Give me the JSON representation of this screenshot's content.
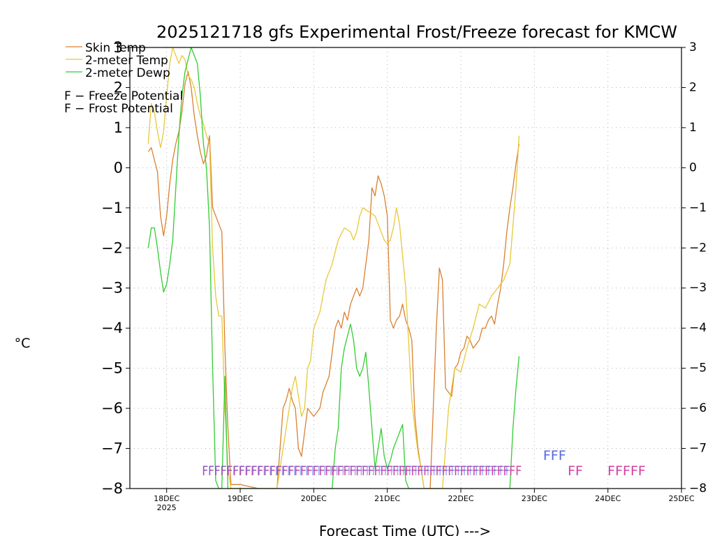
{
  "chart_data": {
    "type": "line",
    "title": "2025121718 gfs Experimental Frost/Freeze forecast for KMCW",
    "xlabel": "Forecast Time (UTC) --->",
    "ylabel": "°C",
    "ylim": [
      -8,
      3
    ],
    "xlim_hours": [
      -6,
      174
    ],
    "yticks": [
      3,
      2,
      1,
      0,
      -1,
      -2,
      -3,
      -4,
      -5,
      -6,
      -7,
      -8
    ],
    "ytick_labels": [
      "3",
      "2",
      "1",
      "0",
      "−1",
      "−2",
      "−3",
      "−4",
      "−5",
      "−6",
      "−7",
      "−8"
    ],
    "xticks": [
      {
        "hour": 6,
        "label": "18DEC",
        "sub": "2025"
      },
      {
        "hour": 30,
        "label": "19DEC",
        "sub": ""
      },
      {
        "hour": 54,
        "label": "20DEC",
        "sub": ""
      },
      {
        "hour": 78,
        "label": "21DEC",
        "sub": ""
      },
      {
        "hour": 102,
        "label": "22DEC",
        "sub": ""
      },
      {
        "hour": 126,
        "label": "23DEC",
        "sub": ""
      },
      {
        "hour": 150,
        "label": "24DEC",
        "sub": ""
      },
      {
        "hour": 174,
        "label": "25DEC",
        "sub": ""
      }
    ],
    "grid": true,
    "legend_position": "top-left",
    "series": [
      {
        "name": "Skin Temp",
        "color": "#d98030",
        "x": [
          0,
          1,
          2,
          3,
          4,
          5,
          6,
          7,
          8,
          9,
          10,
          11,
          12,
          13,
          14,
          15,
          16,
          17,
          18,
          19,
          20,
          21,
          22,
          23,
          24,
          25,
          26,
          27,
          30,
          36,
          42,
          44,
          45,
          46,
          47,
          48,
          49,
          50,
          52,
          54,
          56,
          57,
          58,
          59,
          60,
          61,
          62,
          63,
          64,
          65,
          66,
          67,
          68,
          69,
          70,
          72,
          73,
          74,
          75,
          76,
          77,
          78,
          79,
          80,
          81,
          82,
          83,
          84,
          85,
          86,
          87,
          88,
          90,
          92,
          93,
          94,
          95,
          96,
          97,
          98,
          99,
          100,
          101,
          102,
          103,
          104,
          105,
          106,
          107,
          108,
          109,
          110,
          111,
          112,
          113,
          114,
          115,
          116,
          117,
          118,
          119,
          120,
          121
        ],
        "values": [
          0.4,
          0.5,
          0.2,
          -0.1,
          -1.2,
          -1.7,
          -1.2,
          -0.4,
          0.2,
          0.6,
          0.9,
          1.4,
          2.1,
          2.4,
          2.0,
          1.3,
          0.8,
          0.4,
          0.1,
          0.3,
          0.8,
          -1.0,
          -1.2,
          -1.4,
          -1.6,
          -4.5,
          -6.5,
          -7.9,
          -7.9,
          -8.0,
          -8.0,
          -6.0,
          -5.8,
          -5.5,
          -5.8,
          -6.0,
          -7.0,
          -7.2,
          -6.0,
          -6.2,
          -6.0,
          -5.6,
          -5.4,
          -5.2,
          -4.6,
          -4.0,
          -3.8,
          -4.0,
          -3.6,
          -3.8,
          -3.4,
          -3.2,
          -3.0,
          -3.2,
          -3.0,
          -1.8,
          -0.5,
          -0.7,
          -0.2,
          -0.4,
          -0.7,
          -1.2,
          -3.8,
          -4.0,
          -3.8,
          -3.7,
          -3.4,
          -3.8,
          -4.0,
          -4.3,
          -6.2,
          -7.0,
          -8.0,
          -8.0,
          -6.0,
          -4.0,
          -2.5,
          -2.8,
          -5.5,
          -5.6,
          -5.7,
          -5.0,
          -4.9,
          -4.6,
          -4.5,
          -4.2,
          -4.3,
          -4.5,
          -4.4,
          -4.3,
          -4.0,
          -4.0,
          -3.8,
          -3.7,
          -3.9,
          -3.4,
          -3.0,
          -2.4,
          -1.6,
          -1.0,
          -0.5,
          0.1,
          0.6
        ]
      },
      {
        "name": "2-meter Temp",
        "color": "#e8c838",
        "x": [
          0,
          1,
          2,
          3,
          4,
          5,
          6,
          7,
          8,
          9,
          10,
          11,
          12,
          13,
          14,
          15,
          16,
          17,
          18,
          19,
          20,
          21,
          22,
          23,
          24,
          25,
          26,
          27,
          30,
          42,
          44,
          45,
          46,
          47,
          48,
          49,
          50,
          51,
          52,
          53,
          54,
          56,
          58,
          60,
          62,
          64,
          66,
          67,
          68,
          69,
          70,
          72,
          74,
          75,
          76,
          77,
          78,
          79,
          80,
          81,
          82,
          83,
          84,
          85,
          86,
          87,
          88,
          89,
          90,
          92,
          96,
          98,
          100,
          102,
          104,
          106,
          108,
          110,
          112,
          114,
          116,
          118,
          120,
          121
        ],
        "values": [
          0.6,
          1.6,
          1.4,
          0.9,
          0.5,
          0.9,
          1.8,
          2.6,
          3.0,
          2.8,
          2.6,
          2.8,
          2.7,
          2.3,
          2.2,
          2.0,
          1.6,
          1.3,
          1.1,
          0.8,
          0.6,
          -2.0,
          -3.2,
          -3.7,
          -3.7,
          -6.0,
          -7.5,
          -8.0,
          -8.0,
          -8.0,
          -7.0,
          -6.5,
          -6.0,
          -5.5,
          -5.2,
          -5.7,
          -6.2,
          -6.0,
          -5.0,
          -4.8,
          -4.0,
          -3.6,
          -2.8,
          -2.4,
          -1.8,
          -1.5,
          -1.6,
          -1.8,
          -1.6,
          -1.2,
          -1.0,
          -1.1,
          -1.2,
          -1.4,
          -1.6,
          -1.8,
          -1.9,
          -1.8,
          -1.5,
          -1.0,
          -1.4,
          -2.2,
          -3.0,
          -4.4,
          -5.8,
          -6.5,
          -7.1,
          -7.5,
          -8.0,
          -8.0,
          -8.0,
          -6.0,
          -5.0,
          -5.1,
          -4.5,
          -4.0,
          -3.4,
          -3.5,
          -3.2,
          -3.0,
          -2.8,
          -2.4,
          -0.5,
          0.8
        ]
      },
      {
        "name": "2-meter Dewp",
        "color": "#33cc33",
        "x": [
          0,
          1,
          2,
          3,
          4,
          5,
          6,
          7,
          8,
          9,
          10,
          11,
          12,
          13,
          14,
          15,
          16,
          17,
          18,
          19,
          20,
          21,
          22,
          23,
          24,
          25,
          26,
          28,
          30,
          40,
          60,
          61,
          62,
          63,
          64,
          65,
          66,
          67,
          68,
          69,
          70,
          71,
          72,
          74,
          75,
          76,
          77,
          78,
          79,
          80,
          81,
          82,
          83,
          84,
          85,
          86,
          87,
          100,
          118,
          119,
          120,
          121
        ],
        "values": [
          -2.0,
          -1.5,
          -1.5,
          -2.0,
          -2.6,
          -3.1,
          -2.9,
          -2.4,
          -1.8,
          -0.5,
          0.8,
          1.8,
          2.4,
          2.7,
          3.0,
          2.8,
          2.6,
          1.8,
          0.6,
          0.0,
          -1.5,
          -5.0,
          -7.8,
          -8.0,
          -8.0,
          -5.2,
          -8.0,
          -8.0,
          -8.0,
          -8.0,
          -8.0,
          -7.0,
          -6.5,
          -5.0,
          -4.5,
          -4.2,
          -3.9,
          -4.3,
          -5.0,
          -5.2,
          -5.0,
          -4.6,
          -5.5,
          -7.5,
          -7.0,
          -6.5,
          -7.2,
          -7.5,
          -7.3,
          -7.0,
          -6.8,
          -6.6,
          -6.4,
          -7.8,
          -8.0,
          -8.0,
          -8.0,
          -8.0,
          -8.0,
          -6.5,
          -5.5,
          -4.7
        ]
      }
    ],
    "annotations": {
      "legend_freeze": "F − Freeze Potential",
      "legend_frost": "F − Frost Potential",
      "freeze_color": "#d040a0",
      "frost_color": "#5566dd",
      "freeze_potential_hours": [
        18,
        20,
        22,
        24,
        26,
        28,
        30,
        32,
        34,
        36,
        38,
        40,
        42,
        44,
        46,
        48,
        50,
        52,
        54,
        56,
        58,
        60,
        62,
        64,
        66,
        68,
        70,
        72,
        74,
        76,
        78,
        80,
        82,
        84,
        86,
        88,
        90,
        92,
        94,
        96,
        98,
        100,
        102,
        104,
        106,
        108,
        110,
        112,
        114,
        116,
        118,
        120
      ],
      "frost_potential_hours": [
        18,
        20,
        22,
        24,
        26,
        28,
        30,
        32,
        34,
        36,
        38,
        40,
        42,
        44,
        46,
        48,
        50,
        52,
        54,
        56,
        58,
        60,
        62,
        64,
        66,
        68,
        70,
        72,
        74,
        76,
        78,
        80,
        82,
        84,
        86,
        88,
        90,
        92,
        94,
        96,
        98,
        100,
        102,
        104,
        106,
        108,
        110,
        112,
        114,
        116,
        118
      ],
      "extended_freeze_text": [
        "FF",
        "FFFFF"
      ],
      "extended_freeze_hours": [
        138,
        151
      ],
      "extended_frost_text": "FFF",
      "extended_frost_hours": 130
    }
  }
}
